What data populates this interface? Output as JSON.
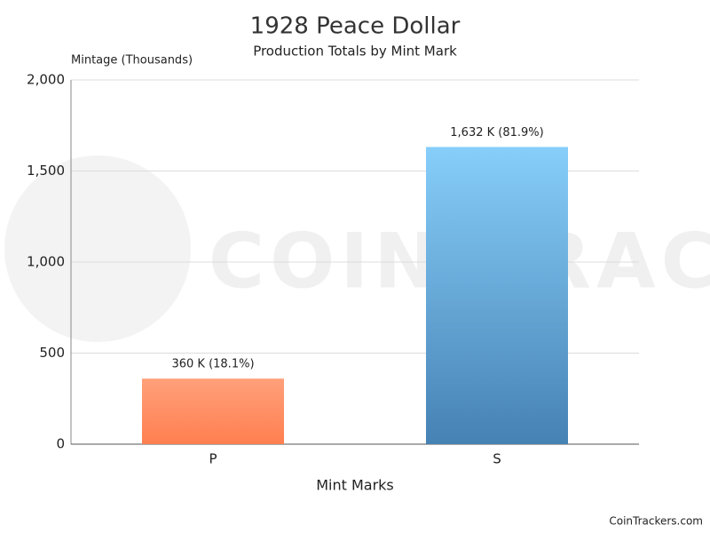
{
  "chart_data": {
    "type": "bar",
    "title": "1928 Peace Dollar",
    "subtitle": "Production Totals by Mint Mark",
    "y_label": "Mintage (Thousands)",
    "x_label": "Mint Marks",
    "categories": [
      "P",
      "S"
    ],
    "values": [
      360,
      1632
    ],
    "value_labels": [
      "360 K (18.1%)",
      "1,632 K (81.9%)"
    ],
    "colors": [
      {
        "top": "#ffa07a",
        "bottom": "#ff7f50"
      },
      {
        "top": "#87cefa",
        "bottom": "#4682b4"
      }
    ],
    "ylim": [
      0,
      2000
    ],
    "yticks": [
      0,
      500,
      {
        "value": 1000,
        "label": "1,000"
      },
      {
        "value": 1500,
        "label": "1,500"
      },
      {
        "value": 2000,
        "label": "2,000"
      }
    ],
    "grid": true,
    "watermark": "COIN TRACKERS",
    "credit": "CoinTrackers.com"
  }
}
